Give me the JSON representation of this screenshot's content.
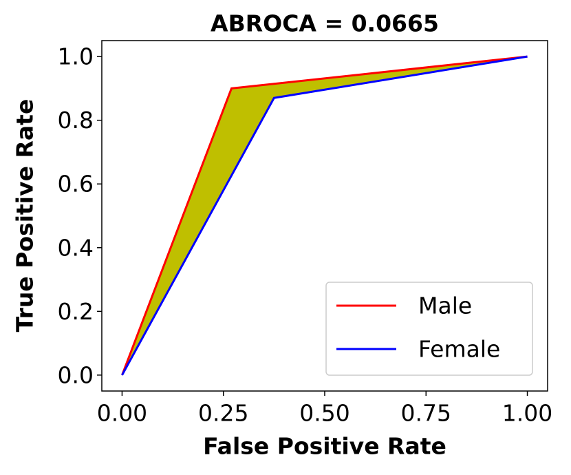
{
  "chart_data": {
    "type": "line",
    "title": "ABROCA = 0.0665",
    "x_label": "False Positive Rate",
    "y_label": "True Positive Rate",
    "series": [
      {
        "name": "Male",
        "color": "#ff0000",
        "x": [
          0,
          0.27,
          1
        ],
        "values": [
          0,
          0.9,
          1
        ]
      },
      {
        "name": "Female",
        "color": "#0000ff",
        "x": [
          0,
          0.375,
          1
        ],
        "values": [
          0,
          0.87,
          1
        ]
      }
    ],
    "fill_between_color": "#bfbf00",
    "xlim": [
      -0.05,
      1.05
    ],
    "ylim": [
      -0.05,
      1.05
    ],
    "xticks": [
      {
        "value": 0,
        "label": "0.00"
      },
      {
        "value": 0.25,
        "label": "0.25"
      },
      {
        "value": 0.5,
        "label": "0.50"
      },
      {
        "value": 0.75,
        "label": "0.75"
      },
      {
        "value": 1,
        "label": "1.00"
      }
    ],
    "yticks": [
      {
        "value": 0,
        "label": "0.0"
      },
      0.2,
      0.4,
      0.6,
      0.8,
      {
        "value": 1,
        "label": "1.0"
      }
    ],
    "legend": "lower right",
    "grid": false
  }
}
